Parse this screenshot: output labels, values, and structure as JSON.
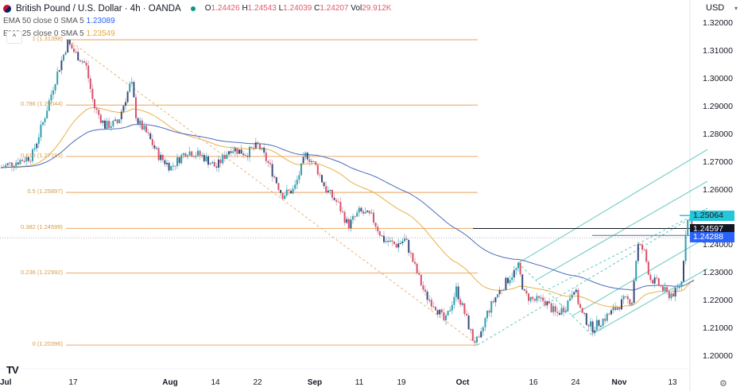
{
  "header": {
    "symbol_title": "British Pound / U.S. Dollar · 4h · OANDA",
    "ohlc": {
      "o_label": "O",
      "o": "1.24426",
      "h_label": "H",
      "h": "1.24543",
      "l_label": "L",
      "l": "1.24039",
      "c_label": "C",
      "c": "1.24207",
      "vol_label": "Vol",
      "vol": "29.912K"
    },
    "indicators": [
      {
        "label": "EMA 50 close 0 SMA 5",
        "value": "1.23089",
        "color": "#2962ff"
      },
      {
        "label": "EMA 25 close 0 SMA 5",
        "value": "1.23549",
        "color": "#e8a838"
      }
    ],
    "collapse_icon": "^"
  },
  "currency_selector": {
    "value": "USD"
  },
  "price_axis": {
    "labels": [
      "1.32000",
      "1.31000",
      "1.30000",
      "1.29000",
      "1.28000",
      "1.27000",
      "1.26000",
      "1.25000",
      "1.24000",
      "1.23000",
      "1.22000",
      "1.21000",
      "1.20000"
    ]
  },
  "price_tags": [
    {
      "value": "1.25064",
      "bg": "#26c6da",
      "fg": "#131722"
    },
    {
      "value": "1.24597",
      "bg": "#131722",
      "fg": "#ffffff"
    },
    {
      "value": "1.24288",
      "bg": "#2962ff",
      "fg": "#ffffff"
    }
  ],
  "time_axis": {
    "labels": [
      "Jul",
      "17",
      "Aug",
      "14",
      "22",
      "Sep",
      "11",
      "19",
      "Oct",
      "16",
      "24",
      "Nov",
      "13"
    ]
  },
  "fib_levels": [
    {
      "label": "1 (1.31398)",
      "price": 1.31398
    },
    {
      "label": "0.786 (1.29044)",
      "price": 1.29044
    },
    {
      "label": "0.618 (1.27195)",
      "price": 1.27195
    },
    {
      "label": "0.5 (1.25897)",
      "price": 1.25897
    },
    {
      "label": "0.382 (1.24599)",
      "price": 1.24599
    },
    {
      "label": "0.236 (1.22992)",
      "price": 1.22992
    },
    {
      "label": "0 (1.20396)",
      "price": 1.20396
    }
  ],
  "footer": {
    "logo": "TV",
    "settings_icon": "⚙"
  },
  "chart_data": {
    "type": "candlestick",
    "title": "British Pound / U.S. Dollar · 4h · OANDA",
    "xlabel": "",
    "ylabel": "USD",
    "ylim": [
      1.195,
      1.325
    ],
    "x_ticks": [
      "Jul",
      "17",
      "Aug",
      "14",
      "22",
      "Sep",
      "11",
      "19",
      "Oct",
      "16",
      "24",
      "Nov",
      "13"
    ],
    "y_ticks": [
      1.2,
      1.21,
      1.22,
      1.23,
      1.24,
      1.25,
      1.26,
      1.27,
      1.28,
      1.29,
      1.3,
      1.31,
      1.32
    ],
    "last_ohlc": {
      "open": 1.24426,
      "high": 1.24543,
      "low": 1.24039,
      "close": 1.24207,
      "volume": "29.912K"
    },
    "series": [
      {
        "name": "EMA 50",
        "value": 1.23089,
        "color": "#2962ff"
      },
      {
        "name": "EMA 25",
        "value": 1.23549,
        "color": "#e8a838"
      }
    ],
    "fibonacci_retracement": {
      "high": 1.31398,
      "low": 1.20396,
      "levels": {
        "1": 1.31398,
        "0.786": 1.29044,
        "0.618": 1.27195,
        "0.5": 1.25897,
        "0.382": 1.24599,
        "0.236": 1.22992,
        "0": 1.20396
      }
    },
    "horizontal_lines": [
      1.25064,
      1.24597,
      1.24288
    ],
    "approx_path": [
      {
        "date": "Jul 3",
        "price": 1.27
      },
      {
        "date": "Jul 10",
        "price": 1.285
      },
      {
        "date": "Jul 14",
        "price": 1.313
      },
      {
        "date": "Jul 18",
        "price": 1.305
      },
      {
        "date": "Jul 24",
        "price": 1.283
      },
      {
        "date": "Jul 27",
        "price": 1.299
      },
      {
        "date": "Aug 3",
        "price": 1.272
      },
      {
        "date": "Aug 10",
        "price": 1.272
      },
      {
        "date": "Aug 17",
        "price": 1.273
      },
      {
        "date": "Aug 24",
        "price": 1.258
      },
      {
        "date": "Aug 30",
        "price": 1.27
      },
      {
        "date": "Sep 7",
        "price": 1.246
      },
      {
        "date": "Sep 14",
        "price": 1.252
      },
      {
        "date": "Sep 21",
        "price": 1.229
      },
      {
        "date": "Sep 28",
        "price": 1.22
      },
      {
        "date": "Oct 4",
        "price": 1.205
      },
      {
        "date": "Oct 11",
        "price": 1.232
      },
      {
        "date": "Oct 19",
        "price": 1.215
      },
      {
        "date": "Oct 26",
        "price": 1.21
      },
      {
        "date": "Nov 3",
        "price": 1.24
      },
      {
        "date": "Nov 9",
        "price": 1.222
      },
      {
        "date": "Nov 14",
        "price": 1.25
      },
      {
        "date": "Nov 15",
        "price": 1.242
      }
    ]
  }
}
